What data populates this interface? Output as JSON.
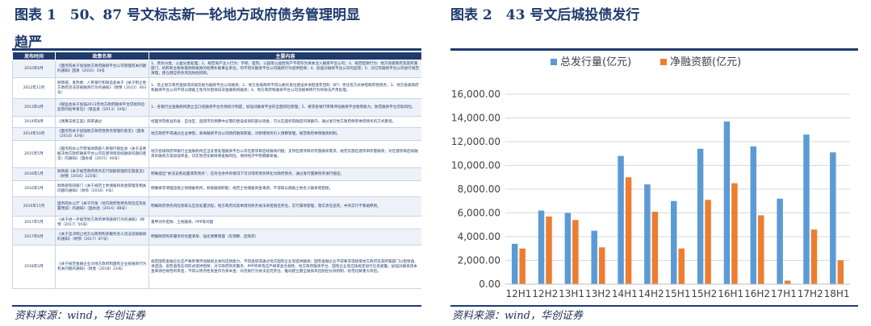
{
  "left": {
    "title_line1": "图表 1　50、87 号文标志新一轮地方政府债务管理明显",
    "title_line2": "趋严",
    "headers": [
      "发布时间",
      "政策名称",
      "主要内容"
    ],
    "rows": [
      {
        "date": "2010年6月",
        "name": "《国务院关于加强地方政府融资平台公司管理有关问题的通知》国发〔2010〕19号",
        "content": "1、债务分类，公益分类处理；2、规范资产注入行为：学校、医院、公园等公益性资产不得作为资本注入融资平台公司；3、规范担保行为：地方各级政府及其所属部门、机构和主要依靠财政拨款的经费补助事业单位，均不得为融资平台公司融资行为提供担保；4、加强对融资平台公司的监管；5、对已有融资平台公司进行规范清理，建立健全债务风险防控机制。"
      },
      {
        "date": "2012年11月",
        "name": "财政部、发改委、人民银行和银监会关于《关于制止地方政府违法违规融资行为的通知》（财预〔2012〕463号）",
        "content": "1、禁止地方政府直接或间接违规为融资平台公司融资；2、地方各级政府不得以委托单位建设并承担逐年回购（BT）责任等方式举借政府性债务；3、地方各级政府和融资平台公司不得以储备土地作为担保向非金融机构融资；4、地方政府和融资平台公司违规举债行为将依法严肃处理。"
      },
      {
        "date": "2013年4月",
        "name": "《银监会关于加强2013年地方政府融资平台贷款风险监管的指导意见》（银监发〔2013〕10号）",
        "content": "1、各银行业金融机构建立全口径融资平台负债统计制度，加强对融资平台的全面风险管理；2、要求各银行审慎评估融资平台偿债能力，防范融资平台贷款风险。"
      },
      {
        "date": "2014年8月",
        "name": "《预算法修正案》四审通过",
        "content": "经国务院批准的省、自治区、直辖市的预算中必需的建设投资的部分资金，可以在国务院确定的限额内，通过发行地方政府债券举借债务的方式筹措。"
      },
      {
        "date": "2014年10月",
        "name": "《国务院关于加强地方政府性债务管理的意见》（国发〔2014〕43号）",
        "content": "地方政府不得通过企业举借，剥离融资平台公司政府融资职能，对新增债务引入预算管理，规范政府举债融资机制。"
      },
      {
        "date": "2015年5月",
        "name": "《国务院办公厅转发财政部人民银行银监会〈关于妥善解决地方政府融资平台公司在建项目后续融资问题的意见〉的通知》（国办发〔2015〕40号）",
        "content": "地方各级政府和银行业金融机构应当妥善处理融资平台公司在建项目后续融资问题；支持在建项目的存量融资需求，规范实施在建项目存量融资；对在建项目后续融资的融资方案加强审查，切实防范化解财政金融风险，保持经济平稳健康发展。"
      },
      {
        "date": "2016年1月",
        "name": "财政部《关于规范政府债务实行限额管理的实施意见》（财预〔2016〕225号）",
        "content": "明确提出“依法妥善处置或有债务”，在符合条件的情况下可对或有债务转化为政府债务，通过发行置换债券进行偿还。"
      },
      {
        "date": "2016年2月",
        "name": "财政部等四部门《关于规范土地储备和资金管理等相关问题的通知》（财综〔2016〕4号）",
        "content": "明确要求清理压缩土地储备机构，剥离融资职能；规范土地储备资金来源，不得再以储备土地名义融资或担保。"
      },
      {
        "date": "2016年11月",
        "name": "国务院办公厅《关于印发〈地方政府性债务风险应急处置预案〉的通知》（国办函〔2016〕88号）",
        "content": "明确政府债务风险等级与应急处置流程，地方政府对其举借的债务依法承担偿还责任，实行属地管理，落实责任追究，中央实行不救助原则。"
      },
      {
        "date": "2017年5月",
        "name": "《关于进一步规范地方政府举债融资行为的通知》（财预〔2017〕50号）",
        "content": "重申对外担保、土地融资、PPP等问题"
      },
      {
        "date": "2017年6月",
        "name": "《关于坚决制止地方以政府购买服务名义违法违规融资的通知》（财预〔2017〕87号）",
        "content": "明确政府购买服务的负面清单、强化预算管理（先预算、后购买）"
      },
      {
        "date": "2018年3月",
        "name": "《关于规范金融企业对地方政府和国有企业投融资行为有关问题的通知》（财金〔2018〕23号）",
        "content": "规定国有金融企业应严格审慎评估融资主体的还款能力，不得直接或通过地方国有企业等提供融资；国有金融企业不得要求或接受地方政府及其所属部门以担保函、承诺函、安慰函等任何形式提供担保；对于政府购买服务、PPP项目等应严格审查合规性；地方政府融资平台、国有企业等应按规定进行信息披露；加强对融资资本金来源合规性的审查，不得以债务性资金作为资本金；对违规行为依法追究责任，推动建立健全融资风险防控长效机制，防范化解重大风险。"
      }
    ],
    "source": "资料来源：wind，华创证券"
  },
  "right": {
    "title": "图表 2　43 号文后城投债发行",
    "source": "资料来源：wind，华创证券"
  },
  "chart_data": {
    "type": "bar",
    "categories": [
      "12H1",
      "12H2",
      "13H1",
      "13H2",
      "14H1",
      "14H2",
      "15H1",
      "15H2",
      "16H1",
      "16H2",
      "17H1",
      "17H2",
      "18H1"
    ],
    "series": [
      {
        "name": "总发行量(亿元)",
        "color": "#5b9bd5",
        "values": [
          3400,
          6200,
          6000,
          4500,
          10800,
          8400,
          7000,
          11400,
          13700,
          11600,
          7200,
          12600,
          11100
        ]
      },
      {
        "name": "净融资额(亿元)",
        "color": "#ed7d31",
        "values": [
          3000,
          5700,
          5400,
          3100,
          9000,
          6100,
          3000,
          7100,
          8500,
          5800,
          300,
          4600,
          2000
        ]
      }
    ],
    "ylim": [
      0,
      16000
    ],
    "yticks": [
      "0.00",
      "2,000.00",
      "4,000.00",
      "6,000.00",
      "8,000.00",
      "10,000.00",
      "12,000.00",
      "14,000.00",
      "16,000.00"
    ],
    "grid": true,
    "legend_position": "top"
  }
}
